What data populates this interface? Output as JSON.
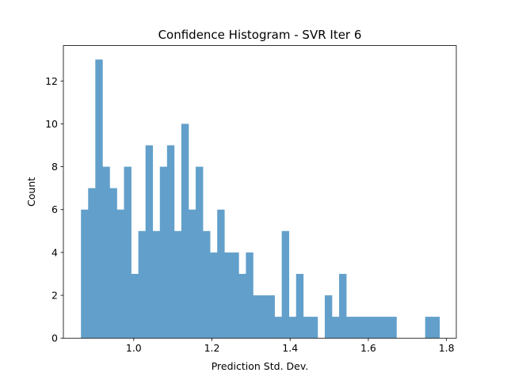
{
  "chart_data": {
    "type": "bar",
    "title": "Confidence Histogram - SVR Iter 6",
    "xlabel": "Prediction Std. Dev.",
    "ylabel": "Count",
    "xlim": [
      0.82,
      1.825
    ],
    "ylim": [
      0,
      13.65
    ],
    "x_ticks": [
      "1.0",
      "1.2",
      "1.4",
      "1.6",
      "1.8"
    ],
    "x_tick_values": [
      1.0,
      1.2,
      1.4,
      1.6,
      1.8
    ],
    "y_ticks": [
      "0",
      "2",
      "4",
      "6",
      "8",
      "10",
      "12"
    ],
    "y_tick_values": [
      0,
      2,
      4,
      6,
      8,
      10,
      12
    ],
    "bin_start": 0.865,
    "bin_end": 1.782,
    "values": [
      6,
      7,
      13,
      8,
      7,
      6,
      8,
      3,
      5,
      9,
      5,
      8,
      9,
      5,
      10,
      6,
      8,
      5,
      4,
      6,
      4,
      4,
      3,
      4,
      2,
      2,
      2,
      1,
      5,
      1,
      3,
      1,
      1,
      0,
      2,
      1,
      3,
      1,
      1,
      1,
      1,
      1,
      1,
      1,
      0,
      0,
      0,
      0,
      1,
      1
    ],
    "bar_color": "#62a0cb",
    "grid": false,
    "legend": "none"
  }
}
